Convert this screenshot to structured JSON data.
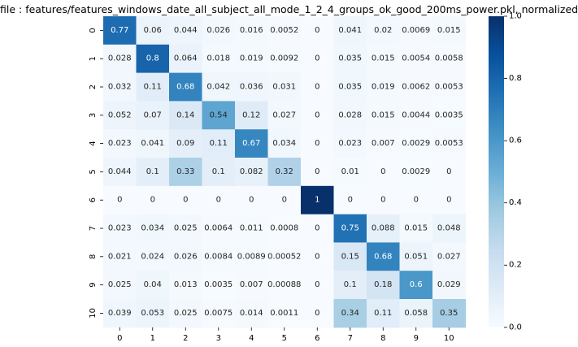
{
  "title": "file : features/features_windows_date_all_subject_all_mode_1_2_4_groups_ok_good_200ms_power.pkl, normalized",
  "chart_data": {
    "type": "heatmap",
    "colormap": "Blues",
    "x_tick_labels": [
      "0",
      "1",
      "2",
      "3",
      "4",
      "5",
      "6",
      "7",
      "8",
      "9",
      "10"
    ],
    "y_tick_labels": [
      "0",
      "1",
      "2",
      "3",
      "4",
      "5",
      "6",
      "7",
      "8",
      "9",
      "10"
    ],
    "colorbar": {
      "range": [
        0.0,
        1.0
      ],
      "ticks": [
        "0.0",
        "0.2",
        "0.4",
        "0.6",
        "0.8",
        "1.0"
      ]
    },
    "values": [
      [
        0.77,
        0.06,
        0.044,
        0.026,
        0.016,
        0.0052,
        0,
        0.041,
        0.02,
        0.0069,
        0.015
      ],
      [
        0.028,
        0.8,
        0.064,
        0.018,
        0.019,
        0.0092,
        0,
        0.035,
        0.015,
        0.0054,
        0.0058
      ],
      [
        0.032,
        0.11,
        0.68,
        0.042,
        0.036,
        0.031,
        0,
        0.035,
        0.019,
        0.0062,
        0.0053
      ],
      [
        0.052,
        0.07,
        0.14,
        0.54,
        0.12,
        0.027,
        0,
        0.028,
        0.015,
        0.0044,
        0.0035
      ],
      [
        0.023,
        0.041,
        0.09,
        0.11,
        0.67,
        0.034,
        0,
        0.023,
        0.007,
        0.0029,
        0.0053
      ],
      [
        0.044,
        0.1,
        0.33,
        0.1,
        0.082,
        0.32,
        0,
        0.01,
        0,
        0.0029,
        0
      ],
      [
        0,
        0,
        0,
        0,
        0,
        0,
        1,
        0,
        0,
        0,
        0
      ],
      [
        0.023,
        0.034,
        0.025,
        0.0064,
        0.011,
        0.0008,
        0,
        0.75,
        0.088,
        0.015,
        0.048
      ],
      [
        0.021,
        0.024,
        0.026,
        0.0084,
        0.0089,
        0.00052,
        0,
        0.15,
        0.68,
        0.051,
        0.027
      ],
      [
        0.025,
        0.04,
        0.013,
        0.0035,
        0.007,
        0.00088,
        0,
        0.1,
        0.18,
        0.6,
        0.029
      ],
      [
        0.039,
        0.053,
        0.025,
        0.0075,
        0.014,
        0.0011,
        0,
        0.34,
        0.11,
        0.058,
        0.35
      ]
    ]
  }
}
